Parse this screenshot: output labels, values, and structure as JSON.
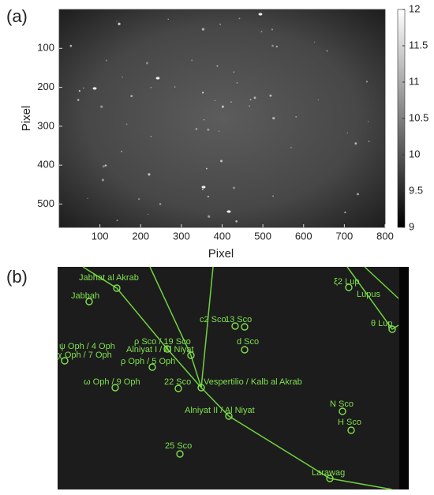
{
  "chart_data": {
    "type": "image",
    "panel_label": "(a)",
    "xlabel": "Pixel",
    "ylabel": "Pixel",
    "xlim": [
      0,
      800
    ],
    "ylim": [
      0,
      560
    ],
    "xticks": [
      100,
      200,
      300,
      400,
      500,
      600,
      700,
      800
    ],
    "yticks": [
      100,
      200,
      300,
      400,
      500
    ],
    "colorbar": {
      "lim": [
        9,
        12
      ],
      "ticks": [
        9,
        9.5,
        10,
        10.5,
        11,
        11.5,
        12
      ]
    }
  },
  "annotated_image": {
    "panel_label": "(b)",
    "labels": [
      "Jabhat al Akrab",
      "Jabbah",
      "ξ2 Lup",
      "Lupus",
      "θ Lup",
      "c2 Sco",
      "13 Sco",
      "d Sco",
      "ρ Sco / 19 Sco",
      "Alniyat I / Al Niyat",
      "ψ Oph / 4 Oph",
      "χ Oph / 7 Oph",
      "ρ Oph / 5 Oph",
      "ω Oph / 9 Oph",
      "22 Sco",
      "Vespertilio / Kalb al Akrab",
      "Alniyat II / Al Niyat",
      "N Sco",
      "H Sco",
      "25 Sco",
      "Larawag"
    ]
  }
}
